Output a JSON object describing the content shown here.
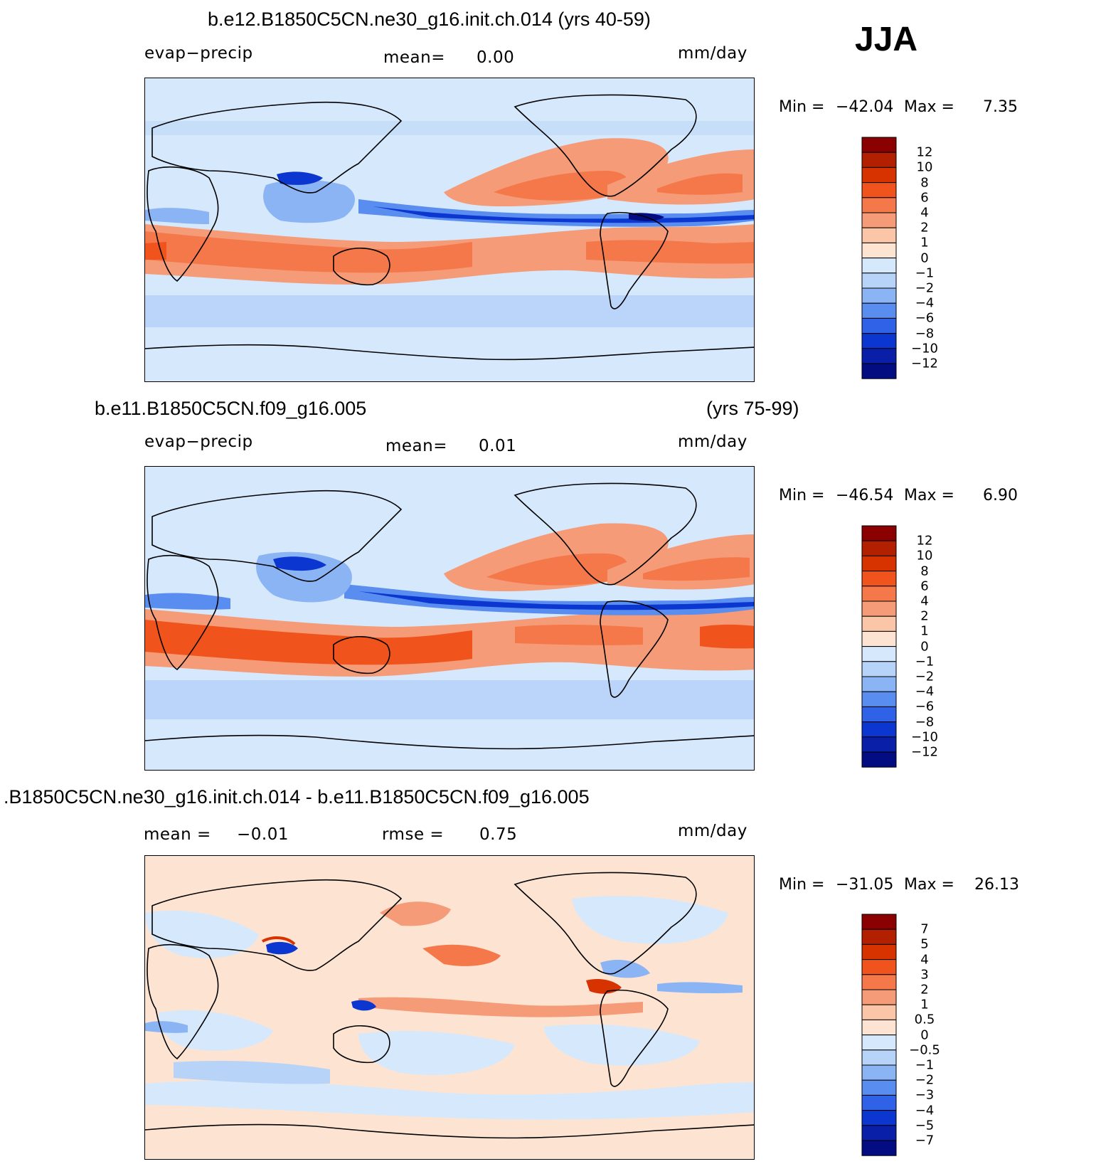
{
  "season": "JJA",
  "panels": [
    {
      "title": "b.e12.B1850C5CN.ne30_g16.init.ch.014 (yrs 40-59)",
      "title_right": "",
      "left_label": "evap−precip",
      "mid_label": "mean=",
      "mid_value": "0.00",
      "extra_label": "",
      "extra_value": "",
      "units": "mm/day",
      "min_label": "Min  =",
      "min_value": "−42.04",
      "max_label": "Max  =",
      "max_value": "7.35",
      "colorbar_labels": [
        "12",
        "10",
        "8",
        "6",
        "4",
        "2",
        "1",
        "0",
        "−1",
        "−2",
        "−4",
        "−6",
        "−8",
        "−10",
        "−12"
      ],
      "colorbar_colors": [
        "#8b0000",
        "#b22000",
        "#d63300",
        "#f0541c",
        "#f5784a",
        "#f59b77",
        "#fbc6a8",
        "#fde4d2",
        "#d6e8fb",
        "#b7d3f8",
        "#8bb4f5",
        "#5a8df0",
        "#2f62e6",
        "#0b36d0",
        "#0a1fa8",
        "#030c80"
      ]
    },
    {
      "title": "b.e11.B1850C5CN.f09_g16.005",
      "title_right": "(yrs 75-99)",
      "left_label": "evap−precip",
      "mid_label": "mean=",
      "mid_value": "0.01",
      "extra_label": "",
      "extra_value": "",
      "units": "mm/day",
      "min_label": "Min  =",
      "min_value": "−46.54",
      "max_label": "Max  =",
      "max_value": "6.90",
      "colorbar_labels": [
        "12",
        "10",
        "8",
        "6",
        "4",
        "2",
        "1",
        "0",
        "−1",
        "−2",
        "−4",
        "−6",
        "−8",
        "−10",
        "−12"
      ],
      "colorbar_colors": [
        "#8b0000",
        "#b22000",
        "#d63300",
        "#f0541c",
        "#f5784a",
        "#f59b77",
        "#fbc6a8",
        "#fde4d2",
        "#d6e8fb",
        "#b7d3f8",
        "#8bb4f5",
        "#5a8df0",
        "#2f62e6",
        "#0b36d0",
        "#0a1fa8",
        "#030c80"
      ]
    },
    {
      "title": ".B1850C5CN.ne30_g16.init.ch.014 - b.e11.B1850C5CN.f09_g16.005",
      "title_right": "",
      "left_label": "mean  =",
      "mid_label": "",
      "mid_value": "",
      "left_value": "−0.01",
      "extra_label": "rmse  =",
      "extra_value": "0.75",
      "units": "mm/day",
      "min_label": "Min  =",
      "min_value": "−31.05",
      "max_label": "Max  =",
      "max_value": "26.13",
      "colorbar_labels": [
        "7",
        "5",
        "4",
        "3",
        "2",
        "1",
        "0.5",
        "0",
        "−0.5",
        "−1",
        "−2",
        "−3",
        "−4",
        "−5",
        "−7"
      ],
      "colorbar_colors": [
        "#8b0000",
        "#b22000",
        "#d63300",
        "#f0541c",
        "#f5784a",
        "#f59b77",
        "#fbc6a8",
        "#fde4d2",
        "#d6e8fb",
        "#b7d3f8",
        "#8bb4f5",
        "#5a8df0",
        "#2f62e6",
        "#0b36d0",
        "#0a1fa8",
        "#030c80"
      ]
    }
  ]
}
